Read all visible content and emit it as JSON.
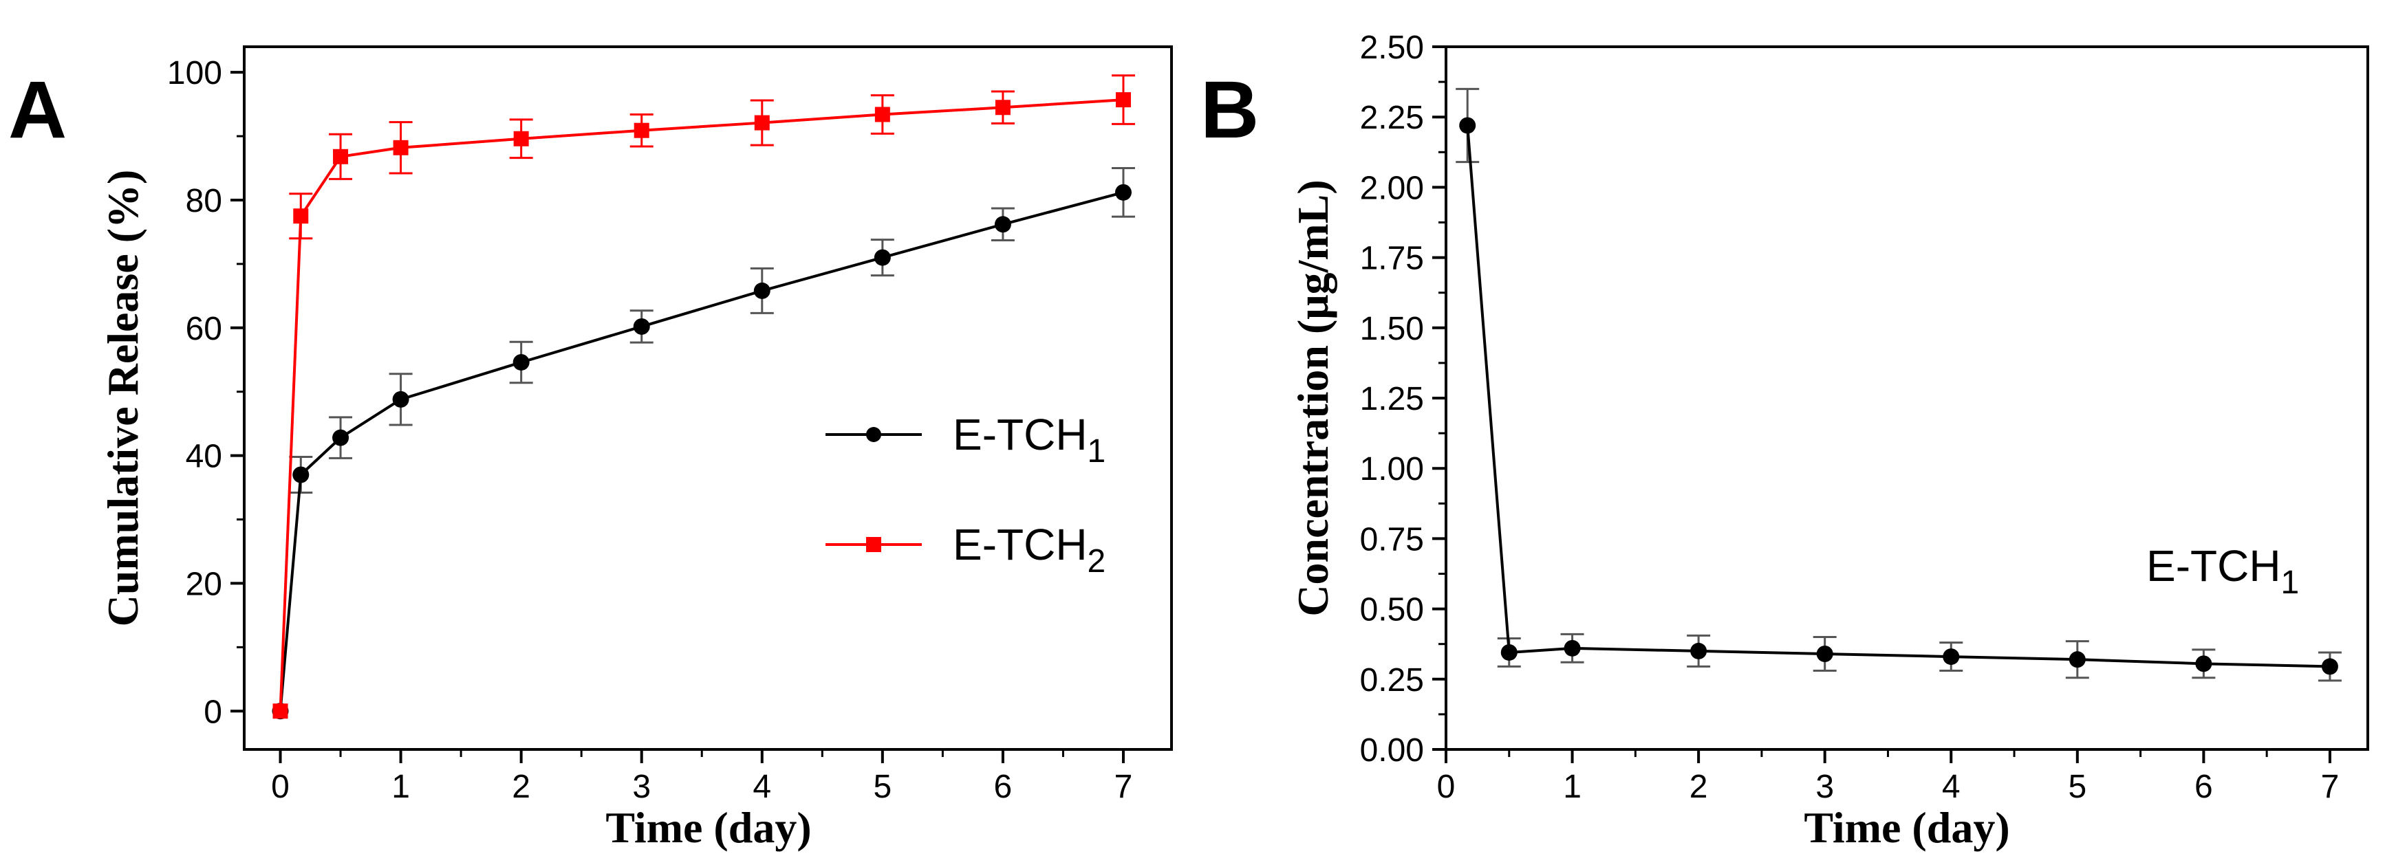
{
  "panels": [
    {
      "label": "A",
      "chart_data": {
        "type": "line",
        "title": "",
        "xlabel": "Time (day)",
        "ylabel": "Cumulative Release (%)",
        "xlim": [
          -0.3,
          7.4
        ],
        "ylim": [
          -6,
          104
        ],
        "xticks": [
          0,
          1,
          2,
          3,
          4,
          5,
          6,
          7
        ],
        "yticks": [
          0,
          20,
          40,
          60,
          80,
          100
        ],
        "tick_labels_x": [
          "0",
          "1",
          "2",
          "3",
          "4",
          "5",
          "6",
          "7"
        ],
        "tick_labels_y": [
          "0",
          "20",
          "40",
          "60",
          "80",
          "100"
        ],
        "legend_position": "center-right",
        "series": [
          {
            "name": "E-TCH",
            "subscript": "1",
            "color": "#000000",
            "marker": "circle",
            "x": [
              0,
              0.17,
              0.5,
              1,
              2,
              3,
              4,
              5,
              6,
              7
            ],
            "y": [
              0,
              37,
              42.8,
              48.8,
              54.6,
              60.2,
              65.8,
              71,
              76.2,
              81.2
            ],
            "err": [
              0,
              2.8,
              3.2,
              4,
              3.2,
              2.5,
              3.5,
              2.8,
              2.5,
              3.8
            ]
          },
          {
            "name": "E-TCH",
            "subscript": "2",
            "color": "#ff0000",
            "marker": "square",
            "x": [
              0,
              0.17,
              0.5,
              1,
              2,
              3,
              4,
              5,
              6,
              7
            ],
            "y": [
              0,
              77.5,
              86.8,
              88.2,
              89.6,
              90.9,
              92.1,
              93.4,
              94.5,
              95.7
            ],
            "err": [
              0,
              3.5,
              3.5,
              4,
              3,
              2.5,
              3.5,
              3,
              2.5,
              3.8
            ]
          }
        ]
      }
    },
    {
      "label": "B",
      "chart_data": {
        "type": "line",
        "title": "",
        "xlabel": "Time (day)",
        "ylabel": "Concentration (μg/mL)",
        "xlim": [
          0,
          7.3
        ],
        "ylim": [
          0,
          2.5
        ],
        "xticks": [
          0,
          1,
          2,
          3,
          4,
          5,
          6,
          7
        ],
        "yticks": [
          0,
          0.25,
          0.5,
          0.75,
          1,
          1.25,
          1.5,
          1.75,
          2,
          2.25,
          2.5
        ],
        "tick_labels_x": [
          "0",
          "1",
          "2",
          "3",
          "4",
          "5",
          "6",
          "7"
        ],
        "tick_labels_y": [
          "0.00",
          "0.25",
          "0.50",
          "0.75",
          "1.00",
          "1.25",
          "1.50",
          "1.75",
          "2.00",
          "2.25",
          "2.50"
        ],
        "annotation": {
          "text": "E-TCH",
          "subscript": "1"
        },
        "series": [
          {
            "name": "E-TCH",
            "subscript": "1",
            "color": "#000000",
            "marker": "circle",
            "x": [
              0.17,
              0.5,
              1,
              2,
              3,
              4,
              5,
              6,
              7
            ],
            "y": [
              2.22,
              0.345,
              0.36,
              0.35,
              0.34,
              0.33,
              0.32,
              0.305,
              0.295
            ],
            "err": [
              0.13,
              0.05,
              0.05,
              0.055,
              0.06,
              0.05,
              0.065,
              0.05,
              0.05
            ]
          }
        ]
      }
    }
  ]
}
